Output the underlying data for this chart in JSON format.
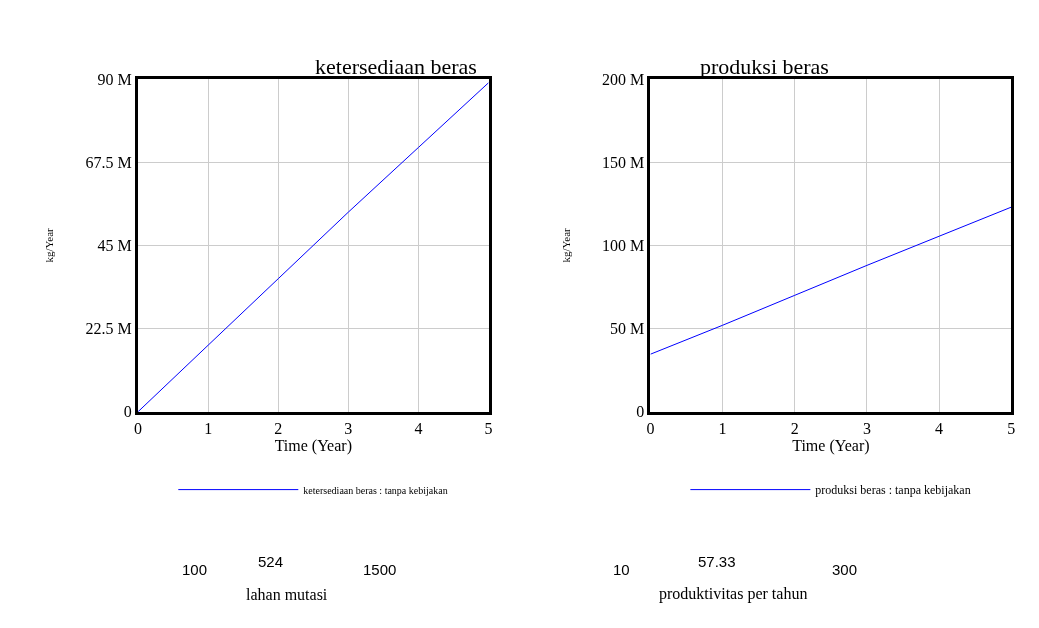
{
  "chart_data": [
    {
      "type": "line",
      "title": "ketersediaan beras",
      "xlabel": "Time (Year)",
      "ylabel": "kg/Year",
      "x": [
        0,
        1,
        2,
        3,
        4,
        5
      ],
      "series": [
        {
          "name": "ketersediaan beras : tanpa kebijakan",
          "color": "#0000ff",
          "values": [
            0,
            18000000,
            36000000,
            54000000,
            71500000,
            89000000
          ]
        }
      ],
      "xlim": [
        0,
        5
      ],
      "xticks": [
        0,
        1,
        2,
        3,
        4,
        5
      ],
      "ylim": [
        0,
        90000000
      ],
      "yticks": [
        {
          "value": 0,
          "label": "0"
        },
        {
          "value": 22500000,
          "label": "22.5 M"
        },
        {
          "value": 45000000,
          "label": "45 M"
        },
        {
          "value": 67500000,
          "label": "67.5 M"
        },
        {
          "value": 90000000,
          "label": "90 M"
        }
      ],
      "grid": true,
      "legend": "bottom",
      "marker": "none",
      "line_style": "solid",
      "annotations": [
        "100",
        "524",
        "1500",
        "lahan mutasi"
      ]
    },
    {
      "type": "line",
      "title": "produksi beras",
      "xlabel": "Time (Year)",
      "ylabel": "kg/Year",
      "x": [
        0,
        1,
        2,
        3,
        4,
        5
      ],
      "series": [
        {
          "name": "produksi beras : tanpa kebijakan",
          "color": "#0000ff",
          "values": [
            34600000,
            52000000,
            70000000,
            88000000,
            105500000,
            123000000
          ]
        }
      ],
      "xlim": [
        0,
        5
      ],
      "xticks": [
        0,
        1,
        2,
        3,
        4,
        5
      ],
      "ylim": [
        0,
        200000000
      ],
      "yticks": [
        {
          "value": 0,
          "label": "0"
        },
        {
          "value": 50000000,
          "label": "50 M"
        },
        {
          "value": 100000000,
          "label": "100 M"
        },
        {
          "value": 150000000,
          "label": "150 M"
        },
        {
          "value": 200000000,
          "label": "200 M"
        }
      ],
      "grid": true,
      "legend": "bottom",
      "marker": "none",
      "line_style": "solid",
      "annotations": [
        "10",
        "57.33",
        "300",
        "produktivitas per tahun"
      ]
    }
  ]
}
